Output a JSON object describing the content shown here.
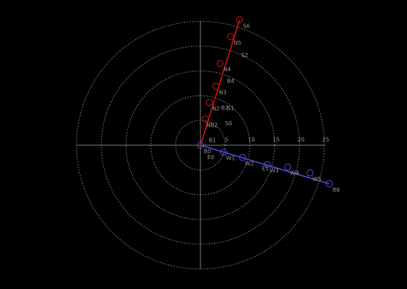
{
  "chart_data": {
    "type": "polar",
    "rlim": [
      0,
      25
    ],
    "rticks": [
      5,
      10,
      15,
      20,
      25
    ],
    "grid": true,
    "series": [
      {
        "color": "#e01010",
        "x": [
          0,
          0.97,
          1.8,
          3.1,
          4.0,
          6.1,
          7.9
        ],
        "y": [
          0,
          5.3,
          8.6,
          11.9,
          16.5,
          21.9,
          25.3
        ],
        "labels": [
          "B0",
          "NB2",
          "N2",
          "N3",
          "N4",
          "N5",
          "S6"
        ]
      },
      {
        "color": "#5050e8",
        "x": [
          0,
          4.7,
          8.5,
          13.5,
          17.6,
          22.1,
          26.0
        ],
        "y": [
          0,
          -1.4,
          -2.5,
          -3.9,
          -4.4,
          -5.6,
          -7.8
        ],
        "labels": [
          null,
          "W1",
          "W2",
          "W3",
          "W4",
          "W5",
          "B6"
        ]
      }
    ],
    "annotations": [
      {
        "text": "S0",
        "x": 5.7,
        "y": 4.4
      },
      {
        "text": "S1",
        "x": 6.1,
        "y": 7.4
      },
      {
        "text": "B3",
        "x": 4.9,
        "y": 7.5
      },
      {
        "text": "B4",
        "x": 6.1,
        "y": 12.9
      },
      {
        "text": "S2",
        "x": 8.9,
        "y": 18.1
      },
      {
        "text": "B1",
        "x": 2.4,
        "y": 1.0
      },
      {
        "text": "E0",
        "x": 2.1,
        "y": -2.4
      },
      {
        "text": "E1",
        "x": 13.1,
        "y": -4.7
      }
    ]
  }
}
